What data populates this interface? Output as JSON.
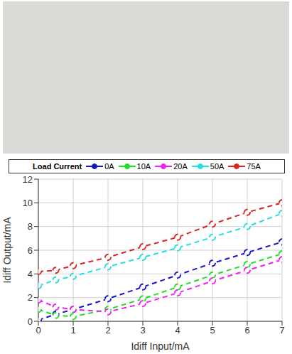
{
  "chart_data": {
    "type": "line",
    "x_label": "Idiff Input/mA",
    "y_label": "Idiff Output/mA",
    "legend_title": "Load Current",
    "legend": "top",
    "grid": true,
    "marker": "o",
    "line_style": "dashed",
    "x": [
      0,
      0.5,
      1,
      2,
      3,
      4,
      5,
      6,
      7
    ],
    "xlim": [
      0,
      7
    ],
    "xticks": [
      0,
      1,
      2,
      3,
      4,
      5,
      6,
      7
    ],
    "ylim": [
      0,
      12
    ],
    "yticks": [
      0,
      2,
      4,
      6,
      8,
      10,
      12
    ],
    "series": [
      {
        "name": "0A",
        "color": "#1515c8",
        "values": [
          0.1,
          0.6,
          1.0,
          1.9,
          2.9,
          3.9,
          4.9,
          5.8,
          6.7
        ]
      },
      {
        "name": "10A",
        "color": "#22dd22",
        "values": [
          1.0,
          0.5,
          0.4,
          1.0,
          1.9,
          2.9,
          3.9,
          4.8,
          5.7
        ]
      },
      {
        "name": "20A",
        "color": "#ee22ee",
        "values": [
          1.8,
          1.2,
          1.0,
          0.8,
          1.5,
          2.4,
          3.4,
          4.3,
          5.2
        ]
      },
      {
        "name": "50A",
        "color": "#22dddd",
        "values": [
          3.0,
          3.5,
          3.8,
          4.6,
          5.4,
          6.2,
          7.1,
          8.0,
          9.1
        ]
      },
      {
        "name": "75A",
        "color": "#dd2222",
        "values": [
          4.2,
          4.3,
          4.7,
          5.4,
          6.3,
          7.1,
          8.2,
          9.2,
          10.0
        ]
      }
    ]
  }
}
